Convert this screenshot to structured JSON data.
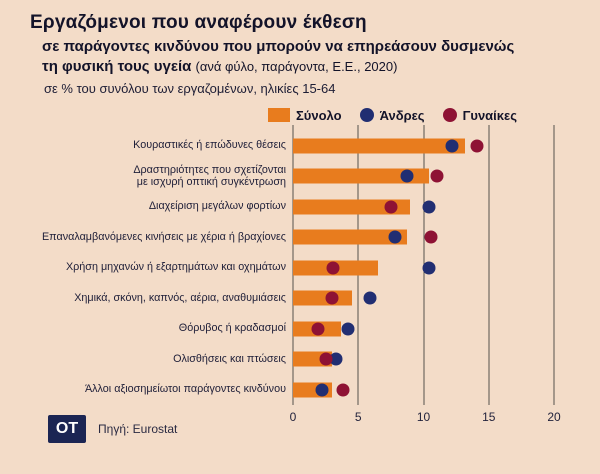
{
  "header": {
    "title": "Εργαζόμενοι που αναφέρουν έκθεση",
    "subtitle_line1": "σε παράγοντες κινδύνου που μπορούν να επηρεάσουν δυσμενώς",
    "subtitle_line2": "τη φυσική τους υγεία",
    "subtitle_note": "(ανά φύλο, παράγοντα, Ε.Ε., 2020)",
    "unit_note": "σε % του συνόλου των εργαζομένων, ηλικίες 15-64"
  },
  "legend": [
    {
      "label": "Σύνολο",
      "marker": "bar",
      "color": "#e87c1e"
    },
    {
      "label": "Άνδρες",
      "marker": "dot",
      "color": "#212e72"
    },
    {
      "label": "Γυναίκες",
      "marker": "dot",
      "color": "#8e1234"
    }
  ],
  "chart_data": {
    "type": "bar",
    "orientation": "horizontal",
    "title": "Εργαζόμενοι που αναφέρουν έκθεση σε παράγοντες κινδύνου που μπορούν να επηρεάσουν δυσμενώς τη φυσική τους υγεία (ανά φύλο, παράγοντα, Ε.Ε., 2020)",
    "unit": "% του συνόλου των εργαζομένων, ηλικίες 15-64",
    "categories": [
      "Κουραστικές ή επώδυνες θέσεις",
      "Δραστηριότητες που σχετίζονται\nμε ισχυρή οπτική συγκέντρωση",
      "Διαχείριση μεγάλων φορτίων",
      "Επαναλαμβανόμενες κινήσεις με χέρια ή βραχίονες",
      "Χρήση μηχανών ή εξαρτημάτων και οχημάτων",
      "Χημικά, σκόνη, καπνός, αέρια, αναθυμιάσεις",
      "Θόρυβος ή κραδασμοί",
      "Ολισθήσεις και πτώσεις",
      "Άλλοι αξιοσημείωτοι παράγοντες κινδύνου"
    ],
    "series": [
      {
        "name": "Σύνολο",
        "style": "bar",
        "color": "#e87c1e",
        "values": [
          13.2,
          10.4,
          9.0,
          8.7,
          6.5,
          4.5,
          3.7,
          3.0,
          3.0
        ]
      },
      {
        "name": "Άνδρες",
        "style": "dot",
        "color": "#212e72",
        "values": [
          12.2,
          8.7,
          10.4,
          7.8,
          10.4,
          5.9,
          4.2,
          3.3,
          2.2
        ]
      },
      {
        "name": "Γυναίκες",
        "style": "dot",
        "color": "#8e1234",
        "values": [
          14.1,
          11.0,
          7.5,
          10.6,
          3.1,
          3.0,
          1.9,
          2.5,
          3.8
        ]
      }
    ],
    "xlim": [
      0,
      20
    ],
    "xticks": [
      0,
      5,
      10,
      15,
      20
    ],
    "grid": true,
    "legend_position": "top"
  },
  "footer": {
    "logo_text": "OT",
    "source": "Πηγή: Eurostat"
  }
}
